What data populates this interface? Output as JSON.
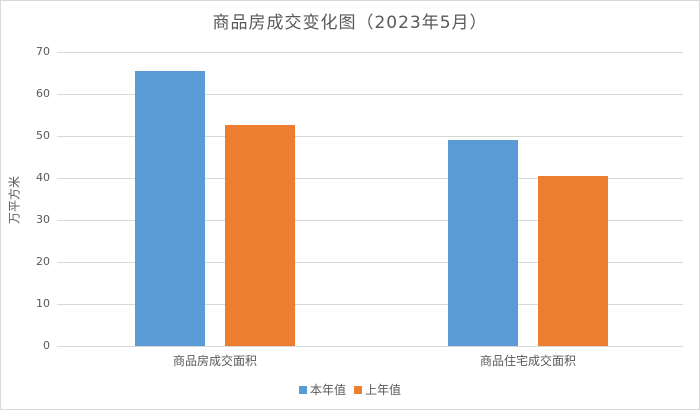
{
  "chart_data": {
    "type": "bar",
    "title": "商品房成交变化图（2023年5月）",
    "xlabel": "",
    "ylabel": "万平方米",
    "ylim": [
      0,
      70
    ],
    "yticks": [
      0,
      10,
      20,
      30,
      40,
      50,
      60,
      70
    ],
    "grid": true,
    "legend_position": "bottom",
    "categories": [
      "商品房成交面积",
      "商品住宅成交面积"
    ],
    "series": [
      {
        "name": "本年值",
        "color": "#5b9bd5",
        "values": [
          65.5,
          49.1
        ]
      },
      {
        "name": "上年值",
        "color": "#ed7d31",
        "values": [
          52.6,
          40.5
        ]
      }
    ]
  },
  "title": "商品房成交变化图（2023年5月）",
  "ylabel": "万平方米",
  "yticks": [
    "0",
    "10",
    "20",
    "30",
    "40",
    "50",
    "60",
    "70"
  ],
  "categories": [
    "商品房成交面积",
    "商品住宅成交面积"
  ],
  "legend": [
    "本年值",
    "上年值"
  ]
}
